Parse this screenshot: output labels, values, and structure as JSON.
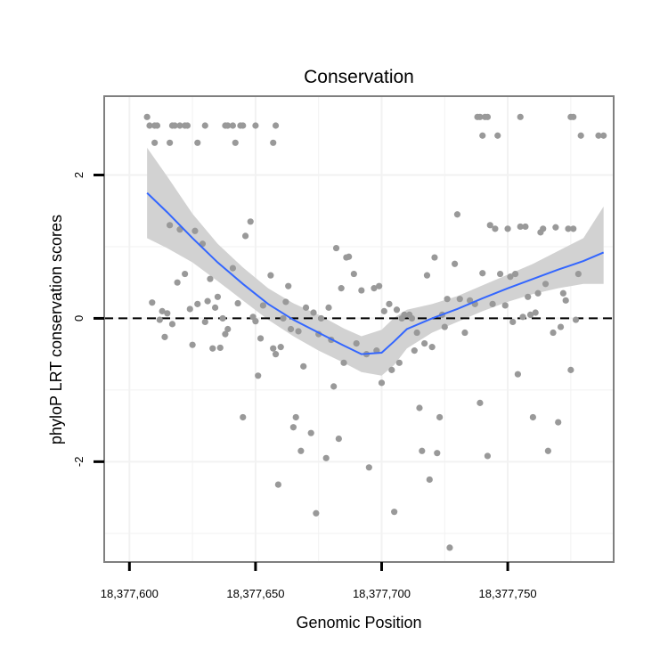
{
  "chart_data": {
    "type": "scatter",
    "title": "Conservation",
    "xlabel": "Genomic Position",
    "ylabel": "phyloP LRT conservation scores",
    "xlim": [
      18377590,
      18377792
    ],
    "ylim": [
      -3.4,
      3.1
    ],
    "x_ticks": [
      18377600,
      18377650,
      18377700,
      18377750
    ],
    "x_tick_labels": [
      "18,377,600",
      "18,377,650",
      "18,377,700",
      "18,377,750"
    ],
    "y_ticks": [
      -2,
      0,
      2
    ],
    "y_tick_labels": [
      "-2",
      "0",
      "2"
    ],
    "x_minor_grid": [
      18377625,
      18377675,
      18377725,
      18377775
    ],
    "y_minor_grid": [
      -3,
      -1,
      1
    ],
    "reference_line": {
      "y": 0,
      "style": "dashed"
    },
    "colors": {
      "points": "#999999",
      "smooth": "#3366ff",
      "ribbon": "#d2d2d2",
      "panel_border": "#7f7f7f",
      "grid": "#f2f2f2"
    },
    "points": [
      [
        18377607,
        2.81
      ],
      [
        18377608,
        2.69
      ],
      [
        18377610,
        2.45
      ],
      [
        18377610,
        2.69
      ],
      [
        18377611,
        2.69
      ],
      [
        18377616,
        2.45
      ],
      [
        18377617,
        2.69
      ],
      [
        18377618,
        2.69
      ],
      [
        18377620,
        2.69
      ],
      [
        18377622,
        2.69
      ],
      [
        18377623,
        2.69
      ],
      [
        18377627,
        2.45
      ],
      [
        18377630,
        2.69
      ],
      [
        18377638,
        2.69
      ],
      [
        18377639,
        2.69
      ],
      [
        18377641,
        2.69
      ],
      [
        18377642,
        2.45
      ],
      [
        18377644,
        2.69
      ],
      [
        18377645,
        2.69
      ],
      [
        18377650,
        2.69
      ],
      [
        18377657,
        2.45
      ],
      [
        18377658,
        2.69
      ],
      [
        18377738,
        2.81
      ],
      [
        18377739,
        2.81
      ],
      [
        18377740,
        2.55
      ],
      [
        18377741,
        2.81
      ],
      [
        18377742,
        2.81
      ],
      [
        18377746,
        2.55
      ],
      [
        18377755,
        2.81
      ],
      [
        18377775,
        2.81
      ],
      [
        18377776,
        2.81
      ],
      [
        18377779,
        2.55
      ],
      [
        18377786,
        2.55
      ],
      [
        18377788,
        2.55
      ],
      [
        18377609,
        0.22
      ],
      [
        18377612,
        -0.02
      ],
      [
        18377613,
        0.1
      ],
      [
        18377614,
        -0.26
      ],
      [
        18377615,
        0.07
      ],
      [
        18377616,
        1.3
      ],
      [
        18377617,
        -0.08
      ],
      [
        18377619,
        0.5
      ],
      [
        18377620,
        1.24
      ],
      [
        18377622,
        0.62
      ],
      [
        18377624,
        0.13
      ],
      [
        18377625,
        -0.37
      ],
      [
        18377626,
        1.22
      ],
      [
        18377627,
        0.2
      ],
      [
        18377629,
        1.04
      ],
      [
        18377630,
        -0.05
      ],
      [
        18377631,
        0.24
      ],
      [
        18377632,
        0.55
      ],
      [
        18377633,
        -0.42
      ],
      [
        18377634,
        0.15
      ],
      [
        18377635,
        0.3
      ],
      [
        18377636,
        -0.41
      ],
      [
        18377637,
        0.0
      ],
      [
        18377638,
        -0.22
      ],
      [
        18377639,
        -0.15
      ],
      [
        18377641,
        0.7
      ],
      [
        18377643,
        0.21
      ],
      [
        18377645,
        -1.38
      ],
      [
        18377646,
        1.15
      ],
      [
        18377648,
        1.35
      ],
      [
        18377649,
        0.02
      ],
      [
        18377650,
        -0.04
      ],
      [
        18377651,
        -0.8
      ],
      [
        18377652,
        -0.28
      ],
      [
        18377653,
        0.18
      ],
      [
        18377656,
        0.6
      ],
      [
        18377657,
        -0.42
      ],
      [
        18377658,
        -0.5
      ],
      [
        18377659,
        -2.32
      ],
      [
        18377660,
        -0.4
      ],
      [
        18377661,
        0.0
      ],
      [
        18377662,
        0.23
      ],
      [
        18377663,
        0.45
      ],
      [
        18377664,
        -0.15
      ],
      [
        18377665,
        -1.52
      ],
      [
        18377666,
        -1.38
      ],
      [
        18377667,
        -0.18
      ],
      [
        18377668,
        -1.85
      ],
      [
        18377669,
        -0.67
      ],
      [
        18377670,
        0.15
      ],
      [
        18377672,
        -1.6
      ],
      [
        18377673,
        0.08
      ],
      [
        18377674,
        -2.72
      ],
      [
        18377675,
        -0.22
      ],
      [
        18377676,
        0.0
      ],
      [
        18377678,
        -1.95
      ],
      [
        18377679,
        0.15
      ],
      [
        18377680,
        -0.3
      ],
      [
        18377681,
        -0.95
      ],
      [
        18377682,
        0.98
      ],
      [
        18377683,
        -1.68
      ],
      [
        18377684,
        0.42
      ],
      [
        18377685,
        -0.62
      ],
      [
        18377686,
        0.85
      ],
      [
        18377687,
        0.86
      ],
      [
        18377689,
        0.62
      ],
      [
        18377690,
        -0.35
      ],
      [
        18377692,
        0.39
      ],
      [
        18377694,
        -0.5
      ],
      [
        18377695,
        -2.08
      ],
      [
        18377697,
        0.42
      ],
      [
        18377698,
        -0.45
      ],
      [
        18377699,
        0.45
      ],
      [
        18377700,
        -0.9
      ],
      [
        18377701,
        0.1
      ],
      [
        18377703,
        0.2
      ],
      [
        18377704,
        -0.72
      ],
      [
        18377705,
        -2.7
      ],
      [
        18377706,
        0.12
      ],
      [
        18377707,
        -0.62
      ],
      [
        18377708,
        0.0
      ],
      [
        18377709,
        0.05
      ],
      [
        18377711,
        0.05
      ],
      [
        18377712,
        0.0
      ],
      [
        18377713,
        -0.45
      ],
      [
        18377714,
        -0.2
      ],
      [
        18377715,
        -1.25
      ],
      [
        18377716,
        -1.85
      ],
      [
        18377717,
        -0.35
      ],
      [
        18377718,
        0.6
      ],
      [
        18377719,
        -2.25
      ],
      [
        18377720,
        -0.4
      ],
      [
        18377721,
        0.85
      ],
      [
        18377722,
        -1.88
      ],
      [
        18377723,
        -1.38
      ],
      [
        18377724,
        0.05
      ],
      [
        18377725,
        -0.12
      ],
      [
        18377726,
        0.27
      ],
      [
        18377727,
        -3.2
      ],
      [
        18377729,
        0.76
      ],
      [
        18377730,
        1.45
      ],
      [
        18377731,
        0.27
      ],
      [
        18377733,
        -0.2
      ],
      [
        18377735,
        0.25
      ],
      [
        18377737,
        0.2
      ],
      [
        18377739,
        -1.18
      ],
      [
        18377740,
        0.63
      ],
      [
        18377742,
        -1.92
      ],
      [
        18377743,
        1.3
      ],
      [
        18377744,
        0.2
      ],
      [
        18377745,
        1.25
      ],
      [
        18377747,
        0.62
      ],
      [
        18377749,
        0.18
      ],
      [
        18377750,
        1.25
      ],
      [
        18377751,
        0.58
      ],
      [
        18377752,
        -0.05
      ],
      [
        18377753,
        0.62
      ],
      [
        18377754,
        -0.78
      ],
      [
        18377755,
        1.28
      ],
      [
        18377756,
        0.02
      ],
      [
        18377757,
        1.28
      ],
      [
        18377758,
        0.3
      ],
      [
        18377759,
        0.05
      ],
      [
        18377760,
        -1.38
      ],
      [
        18377761,
        0.08
      ],
      [
        18377762,
        0.35
      ],
      [
        18377763,
        1.2
      ],
      [
        18377764,
        1.25
      ],
      [
        18377765,
        0.48
      ],
      [
        18377766,
        -1.85
      ],
      [
        18377768,
        -0.2
      ],
      [
        18377769,
        1.27
      ],
      [
        18377770,
        -1.45
      ],
      [
        18377771,
        -0.12
      ],
      [
        18377772,
        0.35
      ],
      [
        18377773,
        0.25
      ],
      [
        18377774,
        1.25
      ],
      [
        18377775,
        -0.72
      ],
      [
        18377776,
        1.25
      ],
      [
        18377777,
        -0.02
      ],
      [
        18377778,
        0.62
      ]
    ],
    "smooth": {
      "x": [
        18377607,
        18377615,
        18377625,
        18377635,
        18377645,
        18377655,
        18377665,
        18377675,
        18377685,
        18377692,
        18377700,
        18377705,
        18377710,
        18377720,
        18377730,
        18377740,
        18377750,
        18377760,
        18377770,
        18377780,
        18377788
      ],
      "y": [
        1.75,
        1.48,
        1.12,
        0.78,
        0.48,
        0.2,
        -0.02,
        -0.2,
        -0.38,
        -0.5,
        -0.48,
        -0.32,
        -0.15,
        0.0,
        0.13,
        0.28,
        0.42,
        0.55,
        0.68,
        0.8,
        0.92
      ],
      "lower": [
        1.12,
        0.98,
        0.78,
        0.52,
        0.25,
        -0.02,
        -0.25,
        -0.45,
        -0.62,
        -0.75,
        -0.8,
        -0.65,
        -0.42,
        -0.2,
        -0.05,
        0.1,
        0.23,
        0.34,
        0.42,
        0.48,
        0.48
      ],
      "upper": [
        2.38,
        1.98,
        1.46,
        1.04,
        0.71,
        0.42,
        0.21,
        0.05,
        -0.14,
        -0.25,
        -0.16,
        0.01,
        0.12,
        0.2,
        0.31,
        0.46,
        0.61,
        0.76,
        0.94,
        1.12,
        1.56
      ]
    }
  }
}
